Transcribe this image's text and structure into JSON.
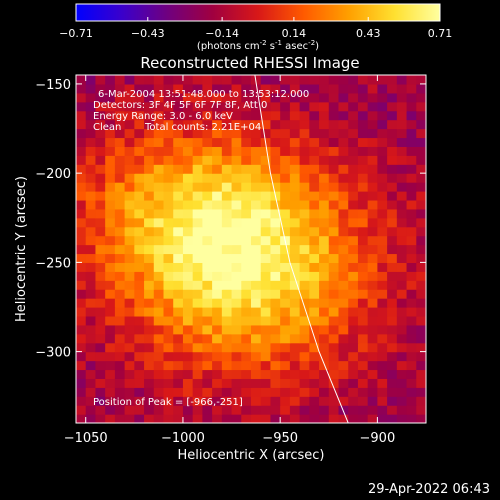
{
  "window": {
    "footer_timestamp": "29-Apr-2022 06:43"
  },
  "colorbar": {
    "tick_labels": [
      "-0.71",
      "-0.43",
      "-0.14",
      "0.14",
      "0.43",
      "0.71"
    ],
    "units_base": "(photons cm",
    "units_sup1": "-2",
    "units_mid1": " s",
    "units_sup2": "-1",
    "units_mid2": " asec",
    "units_sup3": "-2",
    "units_end": ")",
    "range": [
      -0.71,
      0.71
    ],
    "colormap": [
      "#0000ff",
      "#3a00cc",
      "#6f0080",
      "#a00040",
      "#d81818",
      "#ff5a00",
      "#ffa000",
      "#ffe030",
      "#ffffa0"
    ]
  },
  "annotations": {
    "line1": "6-Mar-2004 13:51:48.000 to 13:53:12.000",
    "line2": "Detectors: 3F 4F 5F 6F 7F 8F, Att 0",
    "line3": "Energy Range: 3.0 - 6.0 keV",
    "line4_a": "Clean",
    "line4_b": "Total counts: 2.21E+04",
    "peak": "Position of Peak = [-966,-251]"
  },
  "chart_data": {
    "type": "heatmap",
    "title": "Reconstructed RHESSI Image",
    "xlabel": "Heliocentric X (arcsec)",
    "ylabel": "Heliocentric Y (arcsec)",
    "xlim": [
      -1055,
      -875
    ],
    "ylim": [
      -340,
      -145
    ],
    "xticks": [
      -1050,
      -1000,
      -950,
      -900
    ],
    "yticks": [
      -300,
      -250,
      -200,
      -150
    ],
    "xtick_labels": [
      "−1050",
      "−1000",
      "−950",
      "−900"
    ],
    "ytick_labels": [
      "−300",
      "−250",
      "−200",
      "−150"
    ],
    "peak_position": [
      -966,
      -251
    ],
    "peak_value": 0.71,
    "background_value": -0.2,
    "limb_curve": [
      [
        -963,
        -145
      ],
      [
        -955,
        -200
      ],
      [
        -945,
        -250
      ],
      [
        -930,
        -300
      ],
      [
        -915,
        -340
      ]
    ],
    "grid": false
  }
}
